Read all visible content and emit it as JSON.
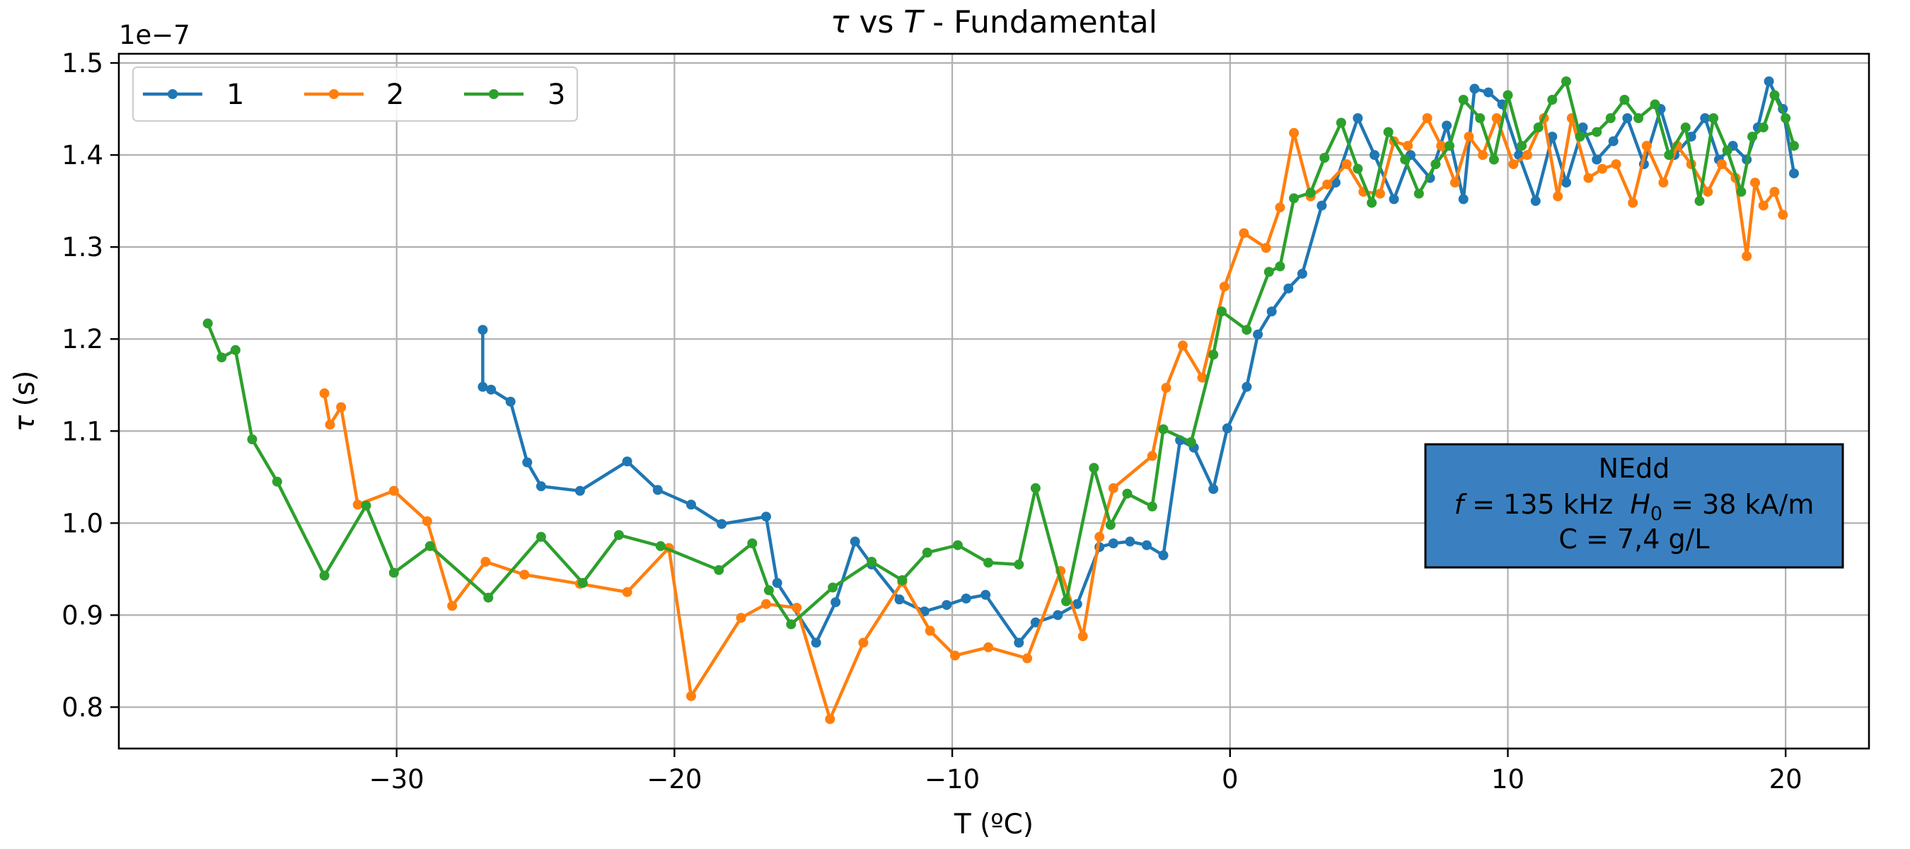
{
  "chart_data": {
    "type": "line",
    "title": "τ vs T - Fundamental",
    "title_parts": {
      "a": "τ",
      "b": " vs ",
      "c": "T",
      "d": " - Fundamental"
    },
    "xlabel": "T (ºC)",
    "ylabel": "τ (s)",
    "ylabel_parts": {
      "sym": "τ",
      "unit": " (s)"
    },
    "y_scale_label": "1e−7",
    "xlim": [
      -40,
      23
    ],
    "ylim": [
      0.755,
      1.51
    ],
    "x_ticks": [
      -30,
      -20,
      -10,
      0,
      10,
      20
    ],
    "x_tick_labels": [
      "−30",
      "−20",
      "−10",
      "0",
      "10",
      "20"
    ],
    "y_ticks": [
      0.8,
      0.9,
      1.0,
      1.1,
      1.2,
      1.3,
      1.4,
      1.5
    ],
    "y_tick_labels": [
      "0.8",
      "0.9",
      "1.0",
      "1.1",
      "1.2",
      "1.3",
      "1.4",
      "1.5"
    ],
    "grid": true,
    "legend_position": "top-left",
    "annotation": {
      "line1": "NEdd",
      "line2": {
        "f_sym": "f",
        "f_val": " = 135 kHz  ",
        "h_sym": "H",
        "h_sub": "0",
        "h_val": " = 38 kA/m"
      },
      "line3": "C = 7,4 g/L"
    },
    "series": [
      {
        "name": "1",
        "color": "#1f77b4",
        "x": [
          -26.9,
          -26.9,
          -26.6,
          -25.9,
          -25.3,
          -24.8,
          -23.4,
          -21.7,
          -20.6,
          -19.4,
          -18.3,
          -16.7,
          -16.3,
          -14.9,
          -14.2,
          -13.5,
          -12.9,
          -11.9,
          -11.0,
          -10.2,
          -9.5,
          -8.8,
          -7.6,
          -7.0,
          -6.2,
          -5.5,
          -4.7,
          -4.2,
          -3.6,
          -3.0,
          -2.4,
          -1.8,
          -1.3,
          -0.6,
          -0.1,
          0.6,
          1.0,
          1.5,
          2.1,
          2.6,
          3.3,
          3.8,
          4.6,
          5.2,
          5.9,
          6.5,
          7.2,
          7.8,
          8.4,
          8.8,
          9.3,
          9.8,
          10.4,
          11.0,
          11.6,
          12.1,
          12.7,
          13.2,
          13.8,
          14.3,
          14.9,
          15.5,
          16.0,
          16.6,
          17.1,
          17.6,
          18.1,
          18.6,
          19.0,
          19.4,
          19.9,
          20.3
        ],
        "y": [
          1.21,
          1.148,
          1.145,
          1.132,
          1.066,
          1.04,
          1.035,
          1.067,
          1.036,
          1.02,
          0.999,
          1.007,
          0.935,
          0.87,
          0.914,
          0.98,
          0.955,
          0.917,
          0.904,
          0.911,
          0.918,
          0.922,
          0.87,
          0.892,
          0.9,
          0.912,
          0.974,
          0.978,
          0.98,
          0.976,
          0.965,
          1.09,
          1.082,
          1.037,
          1.103,
          1.148,
          1.205,
          1.23,
          1.255,
          1.271,
          1.345,
          1.37,
          1.44,
          1.4,
          1.352,
          1.4,
          1.375,
          1.432,
          1.352,
          1.472,
          1.468,
          1.455,
          1.4,
          1.35,
          1.42,
          1.37,
          1.43,
          1.395,
          1.415,
          1.44,
          1.39,
          1.45,
          1.4,
          1.42,
          1.44,
          1.395,
          1.41,
          1.395,
          1.43,
          1.48,
          1.45,
          1.38
        ]
      },
      {
        "name": "2",
        "color": "#ff7f0e",
        "x": [
          -32.6,
          -32.4,
          -32.0,
          -31.4,
          -30.1,
          -28.9,
          -28.0,
          -26.8,
          -25.4,
          -23.4,
          -21.7,
          -20.2,
          -19.4,
          -17.6,
          -16.7,
          -15.6,
          -14.4,
          -13.2,
          -11.8,
          -10.8,
          -9.9,
          -8.7,
          -7.3,
          -6.1,
          -5.3,
          -4.7,
          -4.2,
          -2.8,
          -2.3,
          -1.7,
          -1.0,
          -0.2,
          0.5,
          1.3,
          1.8,
          2.3,
          2.9,
          3.5,
          4.2,
          4.8,
          5.4,
          5.9,
          6.4,
          7.1,
          7.6,
          8.1,
          8.6,
          9.1,
          9.6,
          10.2,
          10.7,
          11.3,
          11.8,
          12.3,
          12.9,
          13.4,
          13.9,
          14.5,
          15.0,
          15.6,
          16.1,
          16.6,
          17.2,
          17.7,
          18.2,
          18.6,
          18.9,
          19.2,
          19.6,
          19.9
        ],
        "y": [
          1.141,
          1.107,
          1.126,
          1.02,
          1.035,
          1.002,
          0.91,
          0.958,
          0.944,
          0.934,
          0.925,
          0.973,
          0.812,
          0.897,
          0.912,
          0.908,
          0.787,
          0.87,
          0.936,
          0.883,
          0.856,
          0.865,
          0.853,
          0.948,
          0.877,
          0.985,
          1.038,
          1.073,
          1.147,
          1.193,
          1.158,
          1.257,
          1.315,
          1.299,
          1.343,
          1.424,
          1.355,
          1.368,
          1.39,
          1.36,
          1.358,
          1.415,
          1.41,
          1.44,
          1.41,
          1.37,
          1.42,
          1.4,
          1.44,
          1.39,
          1.4,
          1.44,
          1.355,
          1.44,
          1.375,
          1.385,
          1.39,
          1.348,
          1.41,
          1.37,
          1.41,
          1.39,
          1.36,
          1.39,
          1.375,
          1.29,
          1.37,
          1.345,
          1.36,
          1.335
        ]
      },
      {
        "name": "3",
        "color": "#2ca02c",
        "x": [
          -36.8,
          -36.3,
          -35.8,
          -35.2,
          -34.3,
          -32.6,
          -31.1,
          -30.1,
          -28.8,
          -26.7,
          -24.8,
          -23.3,
          -22.0,
          -20.5,
          -18.4,
          -17.2,
          -16.6,
          -15.8,
          -14.3,
          -12.9,
          -11.8,
          -10.9,
          -9.8,
          -8.7,
          -7.6,
          -7.0,
          -5.9,
          -4.9,
          -4.3,
          -3.7,
          -2.8,
          -2.4,
          -1.4,
          -0.6,
          -0.3,
          0.6,
          1.4,
          1.8,
          2.3,
          2.9,
          3.4,
          4.0,
          4.6,
          5.1,
          5.7,
          6.3,
          6.8,
          7.4,
          7.9,
          8.4,
          9.0,
          9.5,
          10.0,
          10.5,
          11.1,
          11.6,
          12.1,
          12.6,
          13.2,
          13.7,
          14.2,
          14.7,
          15.3,
          15.8,
          16.4,
          16.9,
          17.4,
          17.9,
          18.4,
          18.8,
          19.2,
          19.6,
          20.0,
          20.3
        ],
        "y": [
          1.217,
          1.18,
          1.188,
          1.091,
          1.045,
          0.943,
          1.019,
          0.946,
          0.975,
          0.919,
          0.985,
          0.935,
          0.987,
          0.975,
          0.949,
          0.978,
          0.927,
          0.89,
          0.93,
          0.958,
          0.938,
          0.968,
          0.976,
          0.957,
          0.955,
          1.038,
          0.915,
          1.06,
          0.998,
          1.032,
          1.018,
          1.102,
          1.088,
          1.183,
          1.23,
          1.21,
          1.273,
          1.279,
          1.353,
          1.359,
          1.397,
          1.435,
          1.385,
          1.348,
          1.425,
          1.395,
          1.358,
          1.39,
          1.41,
          1.46,
          1.44,
          1.395,
          1.465,
          1.41,
          1.43,
          1.46,
          1.48,
          1.42,
          1.425,
          1.44,
          1.46,
          1.44,
          1.455,
          1.4,
          1.43,
          1.35,
          1.44,
          1.405,
          1.36,
          1.42,
          1.43,
          1.465,
          1.44,
          1.41
        ]
      }
    ]
  }
}
